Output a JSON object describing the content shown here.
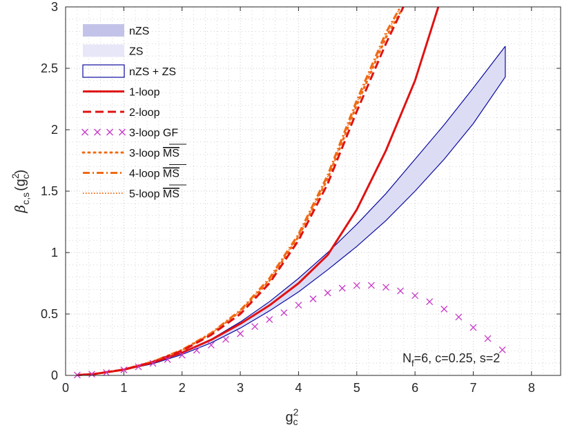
{
  "chart_data": {
    "type": "line",
    "xlabel": {
      "base": "g",
      "sub": "c",
      "sup": "2"
    },
    "ylabel": {
      "beta": "β",
      "sub": "c,s",
      "open": "(g",
      "inner_sup": "2",
      "inner_sub": "c",
      "close": ")"
    },
    "xlim": [
      0,
      8.5
    ],
    "ylim": [
      0,
      3
    ],
    "x_ticks": [
      0,
      1,
      2,
      3,
      4,
      5,
      6,
      7,
      8
    ],
    "x_tick_labels": [
      "0",
      "1",
      "2",
      "3",
      "4",
      "5",
      "6",
      "7",
      "8"
    ],
    "y_ticks": [
      0,
      0.5,
      1,
      1.5,
      2,
      2.5,
      3
    ],
    "y_tick_labels": [
      "0",
      "0.5",
      "1",
      "1.5",
      "2",
      "2.5",
      "3"
    ],
    "grid": "dotted major and minor",
    "annotation": {
      "n": "N",
      "n_sub": "f",
      "text": "=6, c=0.25, s=2"
    },
    "legend_position": "top-left",
    "legend": [
      {
        "key": "nZS",
        "label": "nZS",
        "style": "band-dark",
        "ms": ""
      },
      {
        "key": "ZS",
        "label": "ZS",
        "style": "band-light",
        "ms": ""
      },
      {
        "key": "nZSZS",
        "label": "nZS + ZS",
        "style": "band-outline",
        "ms": ""
      },
      {
        "key": "L1",
        "label": "1-loop",
        "style": "solid",
        "ms": ""
      },
      {
        "key": "L2",
        "label": "2-loop",
        "style": "dashed",
        "ms": ""
      },
      {
        "key": "GF",
        "label": "3-loop GF",
        "style": "cross",
        "ms": ""
      },
      {
        "key": "MS3",
        "label": "3-loop ",
        "style": "dotted",
        "ms": "MS"
      },
      {
        "key": "MS4",
        "label": "4-loop ",
        "style": "dashdot",
        "ms": "MS"
      },
      {
        "key": "MS5",
        "label": "5-loop ",
        "style": "fine-dotted",
        "ms": "MS"
      }
    ],
    "colors": {
      "band": "#0a0aa0",
      "band_fill": "#dcdcf5",
      "red": "#e01212",
      "orange": "#f06a12",
      "magenta": "#c837c8",
      "grid": "#c7c7c7",
      "axis": "#262626"
    },
    "band": {
      "x": [
        0.2,
        0.5,
        1.0,
        1.5,
        2.0,
        2.5,
        3.0,
        3.5,
        4.0,
        4.5,
        5.0,
        5.5,
        6.0,
        6.5,
        7.0,
        7.55
      ],
      "upper": [
        0.003,
        0.012,
        0.047,
        0.1,
        0.185,
        0.295,
        0.435,
        0.6,
        0.79,
        1.0,
        1.23,
        1.48,
        1.76,
        2.04,
        2.34,
        2.68
      ],
      "lower": [
        0.003,
        0.012,
        0.045,
        0.095,
        0.17,
        0.265,
        0.385,
        0.525,
        0.68,
        0.86,
        1.05,
        1.26,
        1.5,
        1.76,
        2.05,
        2.43
      ]
    },
    "series": [
      {
        "name": "1-loop",
        "x": [
          0.2,
          0.5,
          1.0,
          1.5,
          2.0,
          2.5,
          3.0,
          3.5,
          4.0,
          4.5,
          5.0,
          5.5,
          6.0,
          6.4
        ],
        "values": [
          0.003,
          0.012,
          0.046,
          0.105,
          0.185,
          0.29,
          0.42,
          0.57,
          0.75,
          0.98,
          1.35,
          1.83,
          2.4,
          3.0
        ]
      },
      {
        "name": "2-loop",
        "x": [
          0.2,
          0.5,
          1.0,
          1.5,
          2.0,
          2.5,
          3.0,
          3.5,
          4.0,
          4.5,
          5.0,
          5.5,
          5.8
        ],
        "values": [
          0.003,
          0.012,
          0.048,
          0.11,
          0.2,
          0.33,
          0.5,
          0.75,
          1.1,
          1.56,
          2.15,
          2.7,
          3.0
        ]
      },
      {
        "name": "3-loop MS",
        "x": [
          0.2,
          0.5,
          1.0,
          1.5,
          2.0,
          2.5,
          3.0,
          3.5,
          4.0,
          4.5,
          5.0,
          5.5,
          5.8
        ],
        "values": [
          0.003,
          0.012,
          0.048,
          0.112,
          0.205,
          0.34,
          0.52,
          0.77,
          1.13,
          1.6,
          2.2,
          2.75,
          3.0
        ]
      },
      {
        "name": "4-loop MS",
        "x": [
          0.2,
          0.5,
          1.0,
          1.5,
          2.0,
          2.5,
          3.0,
          3.5,
          4.0,
          4.5,
          5.0,
          5.5,
          5.75
        ],
        "values": [
          0.003,
          0.012,
          0.048,
          0.113,
          0.208,
          0.345,
          0.53,
          0.79,
          1.15,
          1.63,
          2.24,
          2.79,
          3.0
        ]
      },
      {
        "name": "5-loop MS",
        "x": [
          0.2,
          0.5,
          1.0,
          1.5,
          2.0,
          2.5,
          3.0,
          3.5,
          4.0,
          4.5,
          5.0,
          5.5,
          5.75
        ],
        "values": [
          0.003,
          0.012,
          0.048,
          0.112,
          0.206,
          0.342,
          0.525,
          0.78,
          1.14,
          1.615,
          2.22,
          2.77,
          3.0
        ]
      },
      {
        "name": "3-loop GF",
        "x": [
          0.2,
          0.45,
          0.7,
          1.0,
          1.25,
          1.5,
          1.75,
          2.0,
          2.25,
          2.5,
          2.75,
          3.0,
          3.25,
          3.5,
          3.75,
          4.0,
          4.25,
          4.5,
          4.75,
          5.0,
          5.25,
          5.5,
          5.75,
          6.0,
          6.25,
          6.5,
          6.75,
          7.0,
          7.25,
          7.5
        ],
        "values": [
          0.003,
          0.01,
          0.023,
          0.045,
          0.07,
          0.098,
          0.13,
          0.165,
          0.205,
          0.247,
          0.293,
          0.34,
          0.398,
          0.455,
          0.51,
          0.572,
          0.623,
          0.672,
          0.71,
          0.732,
          0.733,
          0.718,
          0.688,
          0.65,
          0.6,
          0.54,
          0.475,
          0.39,
          0.3,
          0.208
        ]
      }
    ]
  }
}
